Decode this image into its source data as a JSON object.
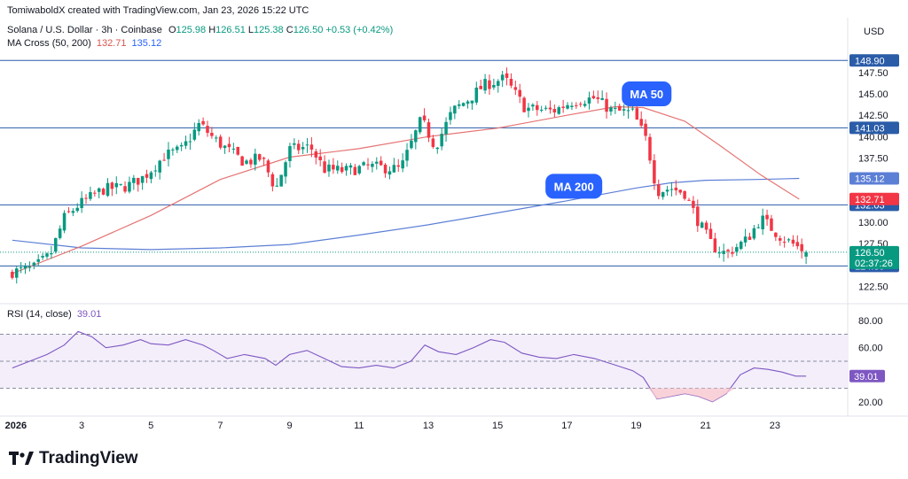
{
  "header": {
    "text": "TomiwaboldX created with TradingView.com, Jan 23, 2026 15:22 UTC"
  },
  "symbol": {
    "name": "Solana / U.S. Dollar · 3h · Coinbase",
    "o_label": "O",
    "o": "125.98",
    "h_label": "H",
    "h": "126.51",
    "l_label": "L",
    "l": "125.38",
    "c_label": "C",
    "c": "126.50",
    "change": "+0.53 (+0.42%)"
  },
  "ma_legend": {
    "label": "MA Cross (50, 200)",
    "v1": "132.71",
    "v2": "135.12"
  },
  "rsi_legend": {
    "label": "RSI (14, close)",
    "value": "39.01"
  },
  "currency": "USD",
  "brand": "TradingView",
  "colors": {
    "up": "#089981",
    "down": "#f23645",
    "ma50": "#e57373",
    "ma200": "#5c7fd6",
    "hline": "#2a5ca8",
    "rsi": "#7e57c2",
    "rsi_fill": "#f3eefa"
  },
  "chart_data": [
    {
      "type": "candlestick",
      "title": "Solana / U.S. Dollar · 3h · Coinbase",
      "ylim": [
        121,
        151
      ],
      "y_ticks": [
        122.5,
        125,
        127.5,
        130,
        132.5,
        135,
        137.5,
        140,
        142.5,
        145,
        147.5
      ],
      "y_tick_labels": [
        "122.50",
        "125.00",
        "127.50",
        "130.00",
        "132.50",
        "135.00",
        "137.50",
        "140.00",
        "142.50",
        "145.00",
        "147.50"
      ],
      "x_ticks": [
        {
          "label": "2026",
          "t": 0
        },
        {
          "label": "3",
          "t": 2
        },
        {
          "label": "5",
          "t": 4
        },
        {
          "label": "7",
          "t": 6
        },
        {
          "label": "9",
          "t": 8
        },
        {
          "label": "11",
          "t": 10
        },
        {
          "label": "13",
          "t": 12
        },
        {
          "label": "15",
          "t": 14
        },
        {
          "label": "17",
          "t": 16
        },
        {
          "label": "19",
          "t": 18
        },
        {
          "label": "21",
          "t": 20
        },
        {
          "label": "23",
          "t": 22
        }
      ],
      "horizontal_levels": [
        {
          "value": 148.9,
          "label": "148.90"
        },
        {
          "value": 141.03,
          "label": "141.03"
        },
        {
          "value": 132.03,
          "label": "132.03"
        },
        {
          "value": 124.89,
          "label": "124.89"
        }
      ],
      "price_tags": [
        {
          "value": 135.12,
          "label": "135.12",
          "color": "#5c7fd6"
        },
        {
          "value": 132.71,
          "label": "132.71",
          "color": "#f23645"
        },
        {
          "value": 126.5,
          "label": "126.50",
          "sub": "02:37:26",
          "color": "#089981"
        }
      ],
      "annotations": [
        {
          "text": "MA 50",
          "t": 18.3,
          "y": 145.0
        },
        {
          "text": "MA 200",
          "t": 16.2,
          "y": 134.2
        }
      ],
      "waypoints": [
        [
          0,
          124.2
        ],
        [
          0.6,
          124.6
        ],
        [
          1.1,
          126.2
        ],
        [
          1.5,
          130.5
        ],
        [
          1.9,
          132.0
        ],
        [
          2.6,
          133.8
        ],
        [
          3.3,
          134.2
        ],
        [
          3.8,
          135.3
        ],
        [
          4.4,
          137.8
        ],
        [
          4.9,
          138.5
        ],
        [
          5.4,
          141.5
        ],
        [
          5.8,
          139.8
        ],
        [
          6.2,
          138.5
        ],
        [
          6.7,
          137.0
        ],
        [
          7.2,
          137.5
        ],
        [
          7.6,
          133.8
        ],
        [
          8.0,
          138.5
        ],
        [
          8.6,
          138.8
        ],
        [
          9.0,
          136.2
        ],
        [
          9.6,
          136.0
        ],
        [
          10.3,
          136.5
        ],
        [
          11.2,
          136.2
        ],
        [
          11.8,
          142.0
        ],
        [
          12.2,
          138.8
        ],
        [
          12.7,
          143.0
        ],
        [
          13.2,
          144.5
        ],
        [
          13.6,
          146.0
        ],
        [
          14.2,
          146.8
        ],
        [
          14.8,
          143.3
        ],
        [
          15.6,
          143.0
        ],
        [
          16.2,
          144.2
        ],
        [
          16.8,
          144.5
        ],
        [
          17.3,
          143.0
        ],
        [
          17.9,
          142.8
        ],
        [
          18.3,
          139.5
        ],
        [
          18.6,
          133.6
        ],
        [
          19.0,
          134.0
        ],
        [
          19.4,
          133.4
        ],
        [
          19.8,
          130.0
        ],
        [
          20.2,
          127.2
        ],
        [
          20.6,
          126.3
        ],
        [
          21.2,
          128.0
        ],
        [
          21.6,
          130.5
        ],
        [
          22.1,
          128.5
        ],
        [
          22.5,
          127.5
        ],
        [
          22.9,
          126.5
        ]
      ],
      "ma50": [
        [
          0,
          124.0
        ],
        [
          2,
          127.2
        ],
        [
          4,
          130.8
        ],
        [
          6,
          135.0
        ],
        [
          8,
          137.6
        ],
        [
          10,
          138.6
        ],
        [
          12,
          140.0
        ],
        [
          14,
          141.0
        ],
        [
          16,
          142.5
        ],
        [
          17.4,
          143.5
        ],
        [
          18.2,
          143.4
        ],
        [
          19.4,
          141.8
        ],
        [
          20.4,
          139.0
        ],
        [
          21.6,
          135.5
        ],
        [
          22.7,
          132.7
        ]
      ],
      "ma200": [
        [
          0,
          127.9
        ],
        [
          2,
          127.0
        ],
        [
          4,
          126.8
        ],
        [
          6,
          127.0
        ],
        [
          8,
          127.4
        ],
        [
          10,
          128.5
        ],
        [
          12,
          129.7
        ],
        [
          14,
          131.1
        ],
        [
          16,
          132.5
        ],
        [
          18,
          134.0
        ],
        [
          19,
          134.6
        ],
        [
          20,
          134.9
        ],
        [
          21.5,
          135.0
        ],
        [
          22.7,
          135.12
        ]
      ]
    },
    {
      "type": "line",
      "title": "RSI (14, close)",
      "ylim": [
        12,
        88
      ],
      "y_ticks": [
        20,
        40,
        60,
        80
      ],
      "y_tick_labels": [
        "20.00",
        "",
        "60.00",
        "80.00"
      ],
      "levels": [
        70,
        50,
        30
      ],
      "last": {
        "value": 39.01,
        "label": "39.01"
      },
      "points": [
        [
          0,
          45
        ],
        [
          0.5,
          50
        ],
        [
          1.0,
          55
        ],
        [
          1.5,
          62
        ],
        [
          1.9,
          72
        ],
        [
          2.3,
          68
        ],
        [
          2.7,
          60
        ],
        [
          3.2,
          62
        ],
        [
          3.7,
          66
        ],
        [
          4.0,
          63
        ],
        [
          4.5,
          62
        ],
        [
          5.0,
          66
        ],
        [
          5.5,
          62
        ],
        [
          5.8,
          58
        ],
        [
          6.2,
          52
        ],
        [
          6.7,
          55
        ],
        [
          7.3,
          52
        ],
        [
          7.6,
          47
        ],
        [
          8.0,
          55
        ],
        [
          8.5,
          58
        ],
        [
          9.0,
          52
        ],
        [
          9.5,
          46
        ],
        [
          10.0,
          45
        ],
        [
          10.5,
          47
        ],
        [
          11.0,
          45
        ],
        [
          11.5,
          50
        ],
        [
          11.9,
          62
        ],
        [
          12.3,
          57
        ],
        [
          12.8,
          55
        ],
        [
          13.3,
          60
        ],
        [
          13.8,
          66
        ],
        [
          14.2,
          64
        ],
        [
          14.7,
          56
        ],
        [
          15.2,
          53
        ],
        [
          15.7,
          52
        ],
        [
          16.2,
          55
        ],
        [
          16.8,
          52
        ],
        [
          17.3,
          48
        ],
        [
          17.9,
          43
        ],
        [
          18.2,
          38
        ],
        [
          18.6,
          22
        ],
        [
          19.0,
          24
        ],
        [
          19.4,
          26
        ],
        [
          19.8,
          24
        ],
        [
          20.2,
          20
        ],
        [
          20.6,
          26
        ],
        [
          21.0,
          40
        ],
        [
          21.4,
          45
        ],
        [
          21.8,
          44
        ],
        [
          22.2,
          42
        ],
        [
          22.6,
          39
        ],
        [
          22.9,
          39.01
        ]
      ]
    }
  ]
}
